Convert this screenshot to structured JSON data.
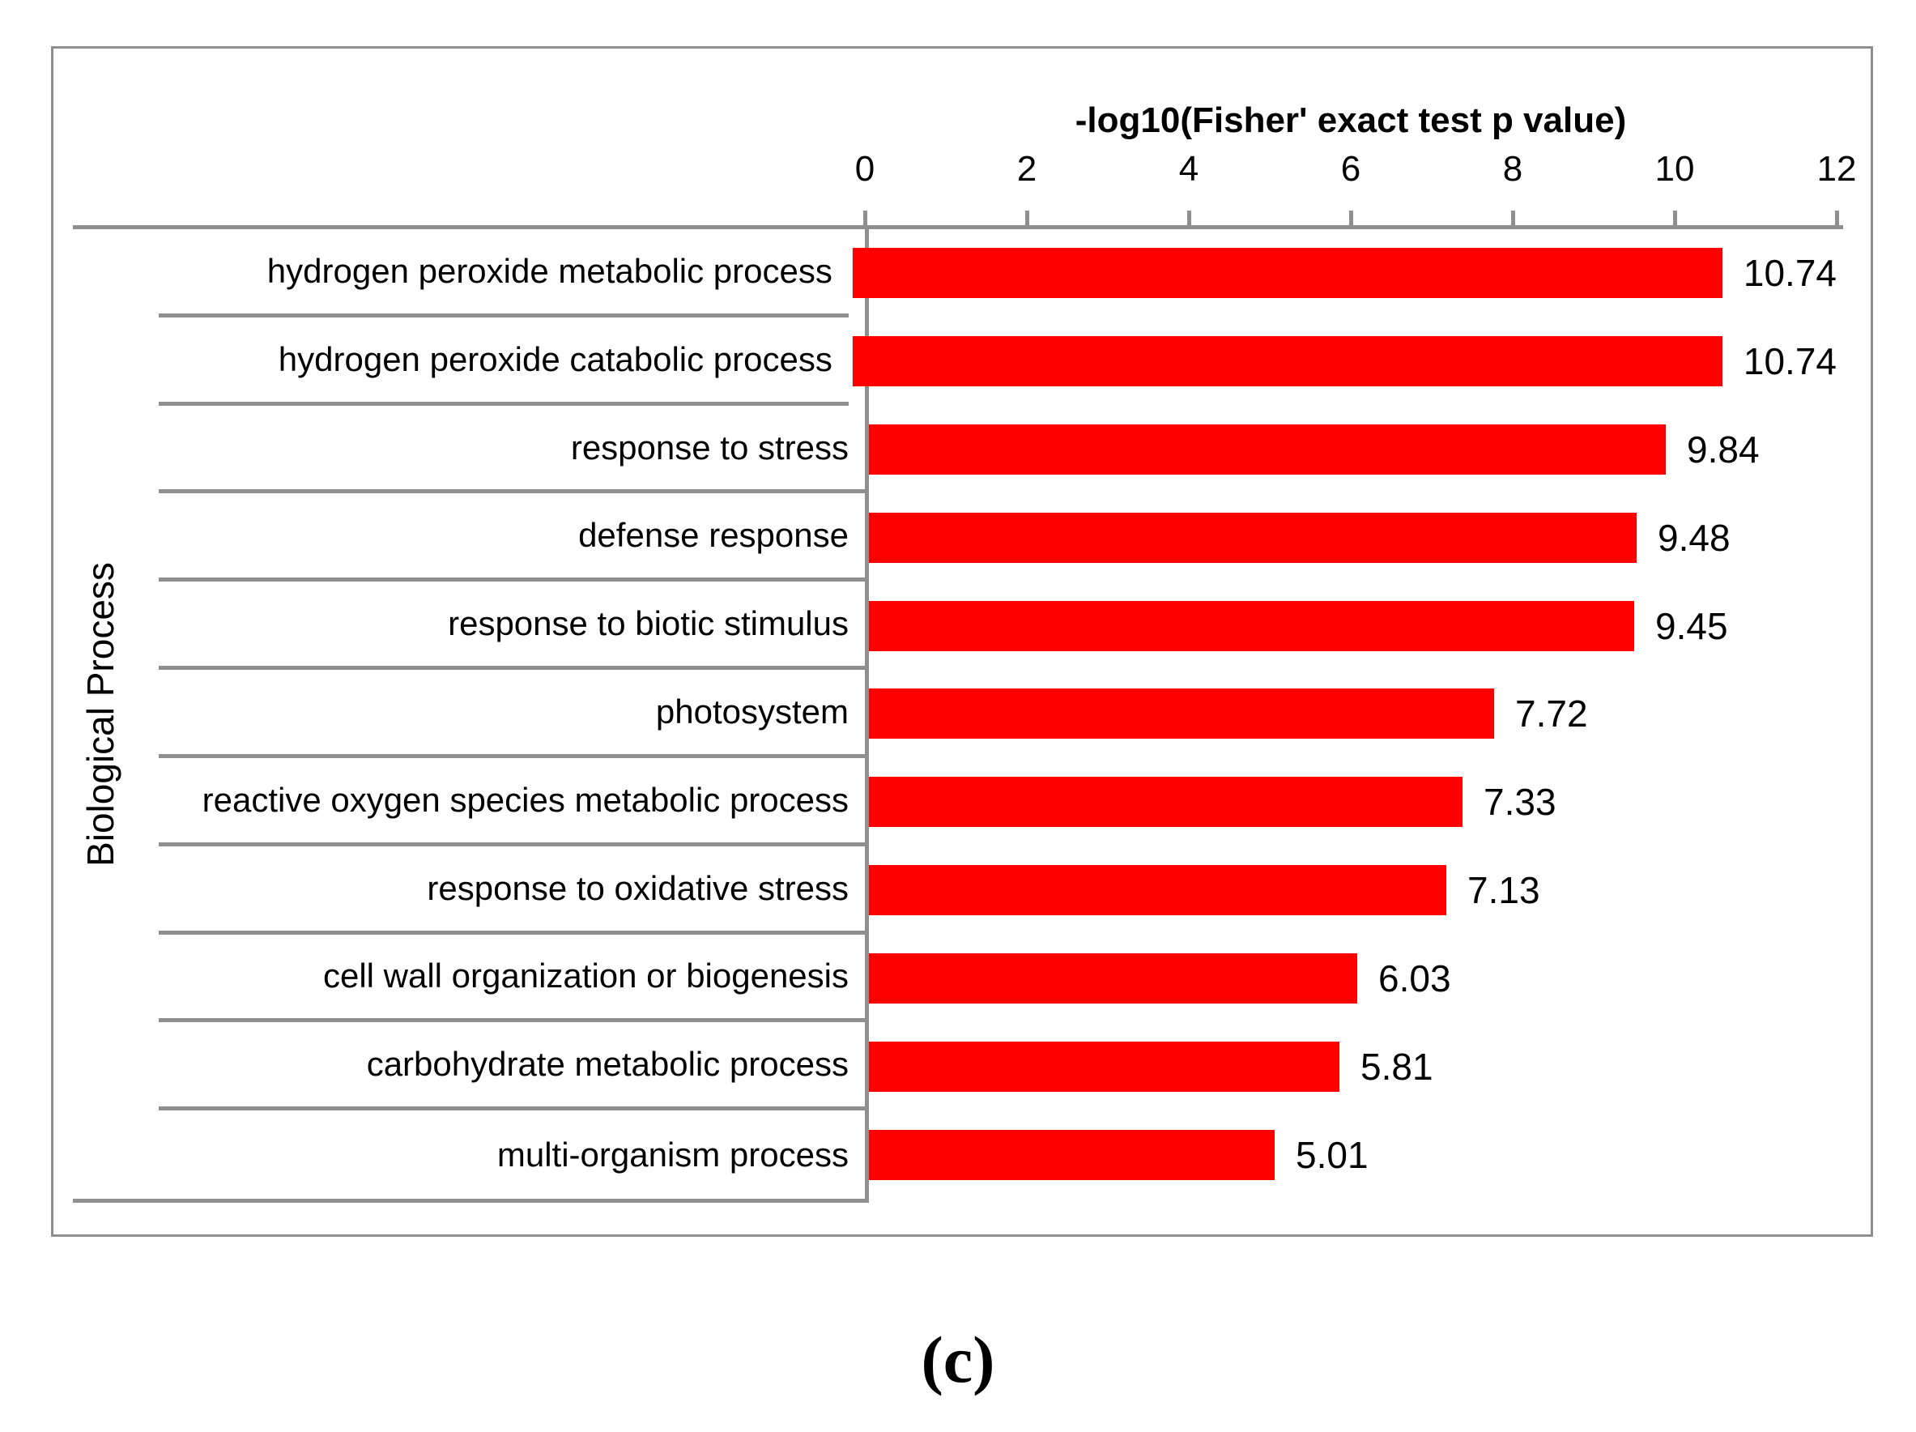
{
  "chart_data": {
    "type": "bar",
    "orientation": "horizontal",
    "title": "-log10(Fisher' exact test p value)",
    "ylabel": "Biological Process",
    "xlabel": "",
    "categories": [
      "hydrogen peroxide metabolic process",
      "hydrogen peroxide catabolic process",
      "response to stress",
      "defense response",
      "response to biotic stimulus",
      "photosystem",
      "reactive oxygen species metabolic process",
      "response to oxidative stress",
      "cell wall organization or biogenesis",
      "carbohydrate metabolic process",
      "multi-organism process"
    ],
    "values": [
      10.74,
      10.74,
      9.84,
      9.48,
      9.45,
      7.72,
      7.33,
      7.13,
      6.03,
      5.81,
      5.01
    ],
    "value_labels": [
      "10.74",
      "10.74",
      "9.84",
      "9.48",
      "9.45",
      "7.72",
      "7.33",
      "7.13",
      "6.03",
      "5.81",
      "5.01"
    ],
    "xlim": [
      0,
      12
    ],
    "x_ticks": [
      0,
      2,
      4,
      6,
      8,
      10,
      12
    ],
    "grid": "category-separators-on",
    "legend": "none",
    "bar_color": "#ff0000",
    "axis_color": "#8f8f8f"
  },
  "caption": "(c)"
}
